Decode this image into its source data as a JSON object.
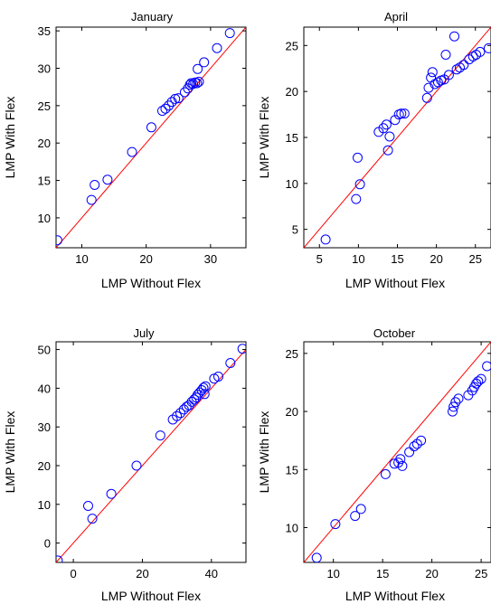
{
  "figure_colors": {
    "marker": "#0000ff",
    "reference_line": "#ff0000",
    "axes": "#000000"
  },
  "chart_data": [
    {
      "type": "scatter",
      "title": "January",
      "xlabel": "LMP Without Flex",
      "ylabel": "LMP With Flex",
      "xlim": [
        6,
        35.5
      ],
      "ylim": [
        6,
        35.5
      ],
      "xticks": [
        10,
        20,
        30
      ],
      "yticks": [
        10,
        15,
        20,
        25,
        30,
        35
      ],
      "grid": false,
      "reference_line": "y = x",
      "points": [
        [
          6.2,
          7.0
        ],
        [
          11.5,
          12.4
        ],
        [
          12.0,
          14.4
        ],
        [
          14.0,
          15.1
        ],
        [
          17.8,
          18.8
        ],
        [
          20.8,
          22.1
        ],
        [
          22.5,
          24.3
        ],
        [
          23.0,
          24.6
        ],
        [
          23.5,
          25.0
        ],
        [
          24.0,
          25.5
        ],
        [
          24.5,
          25.9
        ],
        [
          25.0,
          26.0
        ],
        [
          26.0,
          26.8
        ],
        [
          26.5,
          27.3
        ],
        [
          26.8,
          27.8
        ],
        [
          27.0,
          28.0
        ],
        [
          27.3,
          27.9
        ],
        [
          27.6,
          28.1
        ],
        [
          27.9,
          28.0
        ],
        [
          28.2,
          28.2
        ],
        [
          28.0,
          29.9
        ],
        [
          29.0,
          30.8
        ],
        [
          31.0,
          32.7
        ],
        [
          33.0,
          34.7
        ]
      ]
    },
    {
      "type": "scatter",
      "title": "April",
      "xlabel": "LMP Without Flex",
      "ylabel": "LMP With Flex",
      "xlim": [
        3,
        27
      ],
      "ylim": [
        3,
        27
      ],
      "xticks": [
        5,
        10,
        15,
        20,
        25
      ],
      "yticks": [
        5,
        10,
        15,
        20,
        25
      ],
      "grid": false,
      "reference_line": "y = x",
      "points": [
        [
          5.8,
          3.9
        ],
        [
          9.7,
          8.3
        ],
        [
          9.9,
          12.8
        ],
        [
          10.2,
          9.9
        ],
        [
          12.6,
          15.6
        ],
        [
          13.2,
          16.0
        ],
        [
          13.6,
          16.4
        ],
        [
          13.8,
          13.6
        ],
        [
          14.0,
          15.1
        ],
        [
          14.7,
          16.9
        ],
        [
          15.2,
          17.5
        ],
        [
          15.5,
          17.6
        ],
        [
          15.9,
          17.6
        ],
        [
          18.8,
          19.3
        ],
        [
          19.0,
          20.4
        ],
        [
          19.3,
          21.5
        ],
        [
          19.5,
          22.1
        ],
        [
          19.8,
          20.8
        ],
        [
          20.2,
          21.0
        ],
        [
          20.6,
          21.2
        ],
        [
          21.0,
          21.3
        ],
        [
          21.2,
          24.0
        ],
        [
          21.6,
          21.8
        ],
        [
          22.3,
          26.0
        ],
        [
          22.6,
          22.4
        ],
        [
          23.0,
          22.6
        ],
        [
          23.5,
          22.9
        ],
        [
          24.2,
          23.5
        ],
        [
          24.7,
          23.8
        ],
        [
          25.1,
          24.0
        ],
        [
          25.6,
          24.3
        ],
        [
          26.7,
          24.7
        ]
      ]
    },
    {
      "type": "scatter",
      "title": "July",
      "xlabel": "LMP Without Flex",
      "ylabel": "LMP With Flex",
      "xlim": [
        -5,
        50
      ],
      "ylim": [
        -5,
        52
      ],
      "xticks": [
        0,
        20,
        40
      ],
      "yticks": [
        0,
        10,
        20,
        30,
        40,
        50
      ],
      "grid": false,
      "reference_line": "y = x",
      "points": [
        [
          -4.5,
          -4.5
        ],
        [
          4.3,
          9.6
        ],
        [
          5.5,
          6.3
        ],
        [
          11.0,
          12.7
        ],
        [
          18.3,
          20.0
        ],
        [
          25.2,
          27.8
        ],
        [
          28.8,
          31.9
        ],
        [
          30.0,
          32.8
        ],
        [
          31.0,
          33.6
        ],
        [
          32.0,
          34.5
        ],
        [
          32.8,
          35.2
        ],
        [
          33.5,
          35.6
        ],
        [
          34.3,
          36.5
        ],
        [
          35.0,
          37.1
        ],
        [
          35.6,
          37.6
        ],
        [
          36.0,
          38.3
        ],
        [
          36.6,
          38.9
        ],
        [
          37.2,
          39.5
        ],
        [
          37.7,
          40.1
        ],
        [
          38.3,
          40.5
        ],
        [
          38.0,
          38.5
        ],
        [
          40.8,
          42.5
        ],
        [
          42.0,
          43.0
        ],
        [
          45.5,
          46.5
        ],
        [
          49.0,
          50.2
        ]
      ]
    },
    {
      "type": "scatter",
      "title": "October",
      "xlabel": "LMP Without Flex",
      "ylabel": "LMP With Flex",
      "xlim": [
        7,
        26
      ],
      "ylim": [
        7,
        26
      ],
      "xticks": [
        10,
        15,
        20,
        25
      ],
      "yticks": [
        10,
        15,
        20,
        25
      ],
      "grid": false,
      "reference_line": "y = x",
      "points": [
        [
          8.3,
          7.4
        ],
        [
          10.2,
          10.3
        ],
        [
          12.2,
          11.0
        ],
        [
          12.8,
          11.6
        ],
        [
          15.3,
          14.6
        ],
        [
          16.2,
          15.5
        ],
        [
          16.6,
          15.6
        ],
        [
          16.8,
          15.9
        ],
        [
          17.0,
          15.3
        ],
        [
          17.7,
          16.5
        ],
        [
          18.2,
          17.0
        ],
        [
          18.5,
          17.2
        ],
        [
          18.9,
          17.5
        ],
        [
          22.1,
          20.0
        ],
        [
          22.2,
          20.4
        ],
        [
          22.4,
          20.8
        ],
        [
          22.7,
          21.1
        ],
        [
          23.7,
          21.4
        ],
        [
          24.1,
          21.8
        ],
        [
          24.3,
          22.1
        ],
        [
          24.5,
          22.4
        ],
        [
          24.7,
          22.6
        ],
        [
          25.0,
          22.8
        ],
        [
          25.6,
          23.9
        ]
      ]
    }
  ]
}
